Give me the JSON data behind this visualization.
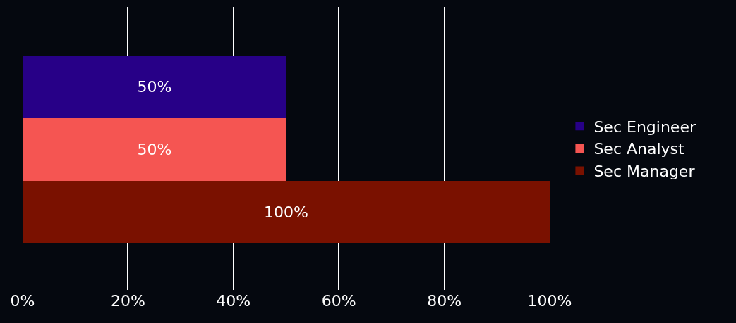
{
  "chart_data": {
    "type": "bar",
    "orientation": "horizontal",
    "categories": [
      null,
      null,
      null
    ],
    "series": [
      {
        "name": "Sec Engineer",
        "color": "#270087",
        "values": [
          50,
          null,
          null
        ],
        "value_labels": [
          "50%",
          null,
          null
        ]
      },
      {
        "name": "Sec Analyst",
        "color": "#f55552",
        "values": [
          null,
          50,
          null
        ],
        "value_labels": [
          null,
          "50%",
          null
        ]
      },
      {
        "name": "Sec Manager",
        "color": "#7a1100",
        "values": [
          null,
          null,
          100
        ],
        "value_labels": [
          null,
          null,
          "100%"
        ]
      }
    ],
    "xlim": [
      0,
      100
    ],
    "xticks": [
      {
        "value": 0,
        "label": "0%"
      },
      {
        "value": 20,
        "label": "20%"
      },
      {
        "value": 40,
        "label": "40%"
      },
      {
        "value": 60,
        "label": "60%"
      },
      {
        "value": 80,
        "label": "80%"
      },
      {
        "value": 100,
        "label": "100%"
      }
    ],
    "grid": "x",
    "legend": "right"
  }
}
